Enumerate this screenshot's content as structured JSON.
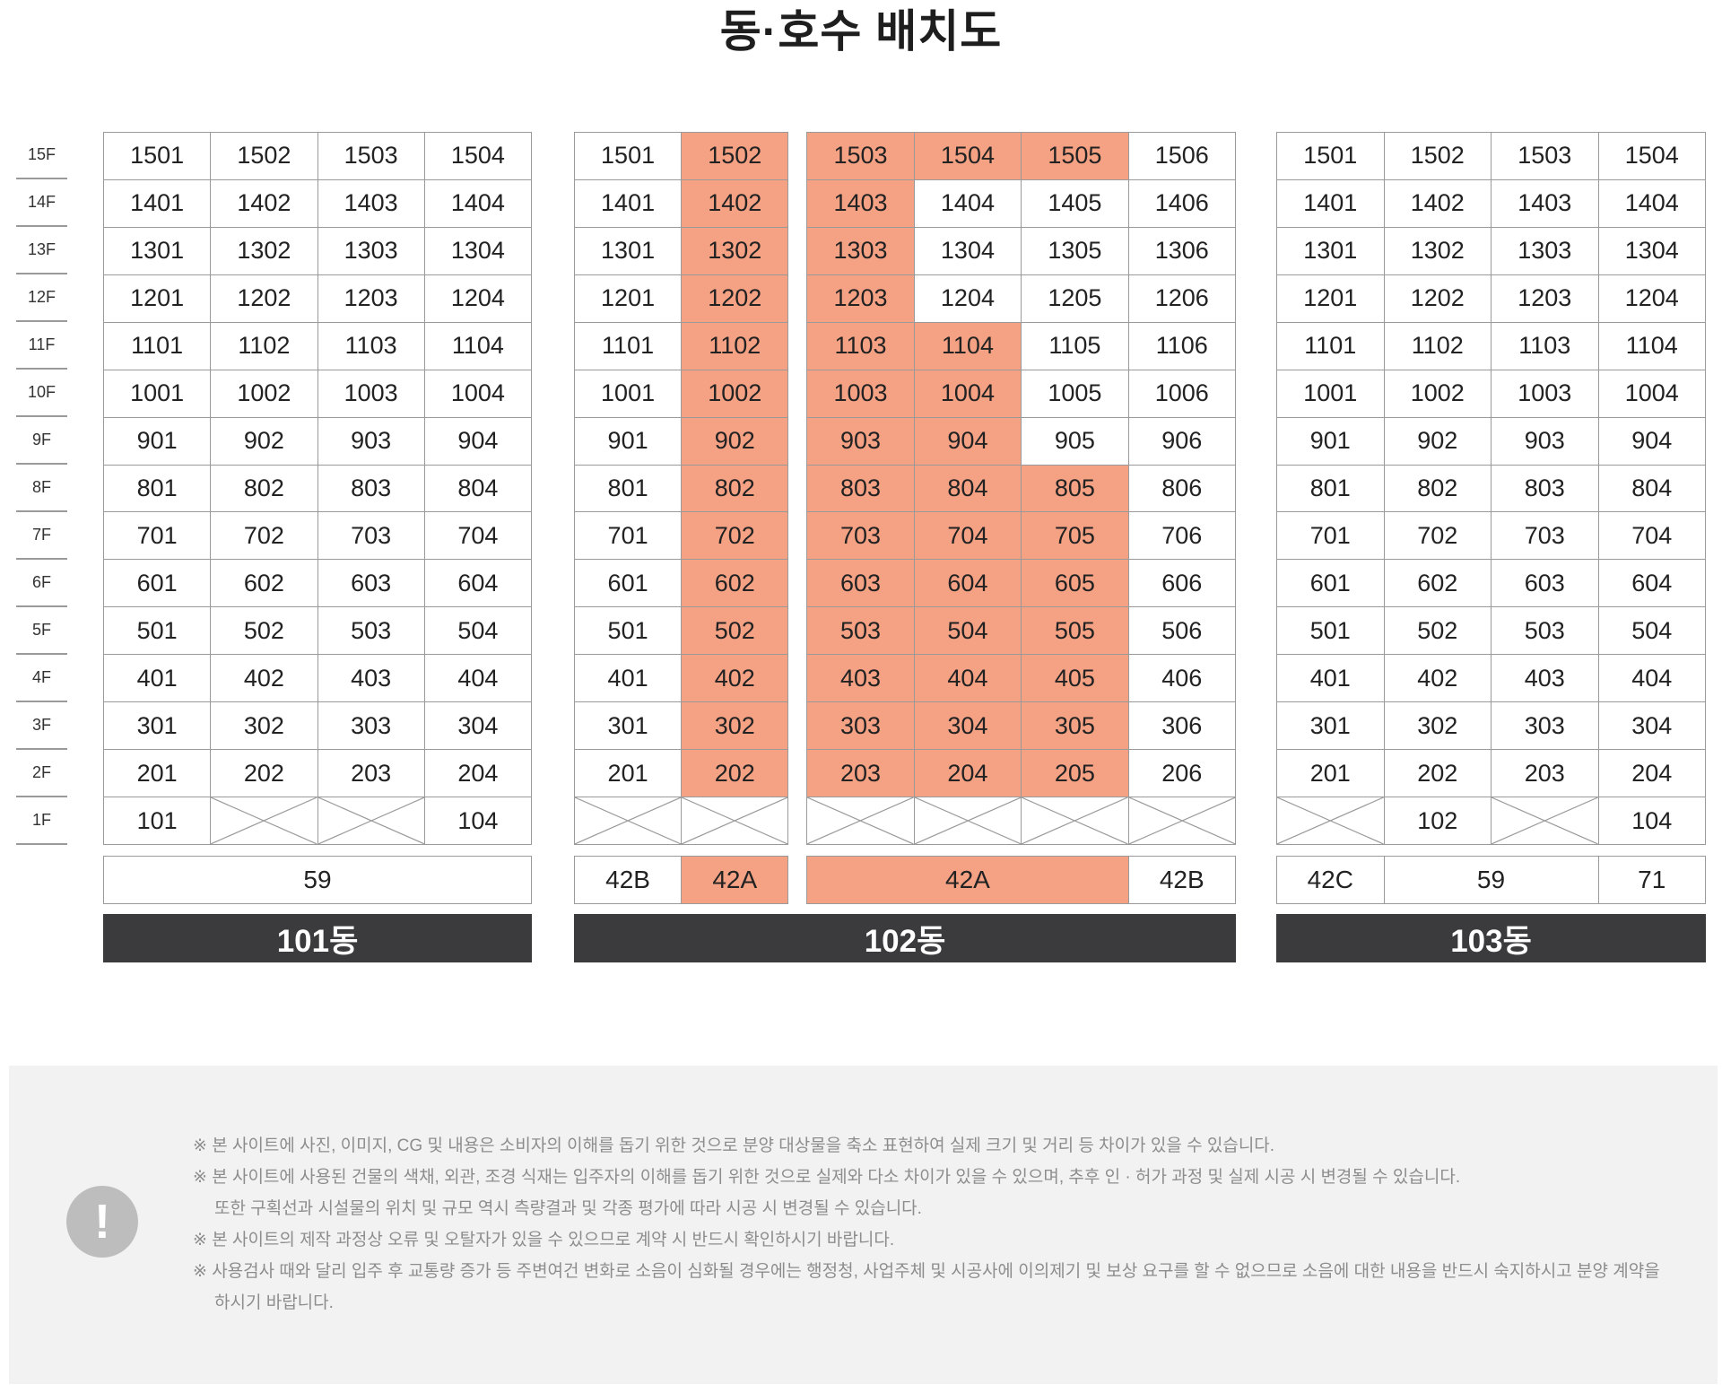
{
  "title": "동·호수 배치도",
  "floors": [
    "15F",
    "14F",
    "13F",
    "12F",
    "11F",
    "10F",
    "9F",
    "8F",
    "7F",
    "6F",
    "5F",
    "4F",
    "3F",
    "2F",
    "1F"
  ],
  "buildings": [
    {
      "name": "101동",
      "types": [
        {
          "label": "59",
          "span": 4,
          "highlight": false
        }
      ],
      "rows": [
        [
          "1501",
          "1502",
          "1503",
          "1504"
        ],
        [
          "1401",
          "1402",
          "1403",
          "1404"
        ],
        [
          "1301",
          "1302",
          "1303",
          "1304"
        ],
        [
          "1201",
          "1202",
          "1203",
          "1204"
        ],
        [
          "1101",
          "1102",
          "1103",
          "1104"
        ],
        [
          "1001",
          "1002",
          "1003",
          "1004"
        ],
        [
          "901",
          "902",
          "903",
          "904"
        ],
        [
          "801",
          "802",
          "803",
          "804"
        ],
        [
          "701",
          "702",
          "703",
          "704"
        ],
        [
          "601",
          "602",
          "603",
          "604"
        ],
        [
          "501",
          "502",
          "503",
          "504"
        ],
        [
          "401",
          "402",
          "403",
          "404"
        ],
        [
          "301",
          "302",
          "303",
          "304"
        ],
        [
          "201",
          "202",
          "203",
          "204"
        ],
        [
          "101",
          "X",
          "X",
          "104"
        ]
      ],
      "highlighted": []
    },
    {
      "name": "102동",
      "types": [
        {
          "label": "42B",
          "span": 1,
          "highlight": false
        },
        {
          "label": "42A",
          "span": 1,
          "highlight": true
        },
        {
          "label": "42A",
          "span": 3,
          "highlight": true
        },
        {
          "label": "42B",
          "span": 1,
          "highlight": false
        }
      ],
      "rows": [
        [
          "1501",
          "1502",
          "1503",
          "1504",
          "1505",
          "1506"
        ],
        [
          "1401",
          "1402",
          "1403",
          "1404",
          "1405",
          "1406"
        ],
        [
          "1301",
          "1302",
          "1303",
          "1304",
          "1305",
          "1306"
        ],
        [
          "1201",
          "1202",
          "1203",
          "1204",
          "1205",
          "1206"
        ],
        [
          "1101",
          "1102",
          "1103",
          "1104",
          "1105",
          "1106"
        ],
        [
          "1001",
          "1002",
          "1003",
          "1004",
          "1005",
          "1006"
        ],
        [
          "901",
          "902",
          "903",
          "904",
          "905",
          "906"
        ],
        [
          "801",
          "802",
          "803",
          "804",
          "805",
          "806"
        ],
        [
          "701",
          "702",
          "703",
          "704",
          "705",
          "706"
        ],
        [
          "601",
          "602",
          "603",
          "604",
          "605",
          "606"
        ],
        [
          "501",
          "502",
          "503",
          "504",
          "505",
          "506"
        ],
        [
          "401",
          "402",
          "403",
          "404",
          "405",
          "406"
        ],
        [
          "301",
          "302",
          "303",
          "304",
          "305",
          "306"
        ],
        [
          "201",
          "202",
          "203",
          "204",
          "205",
          "206"
        ],
        [
          "X",
          "X",
          "X",
          "X",
          "X",
          "X"
        ]
      ],
      "highlighted": [
        "1502",
        "1503",
        "1504",
        "1505",
        "1402",
        "1403",
        "1302",
        "1303",
        "1202",
        "1203",
        "1102",
        "1103",
        "1104",
        "1002",
        "1003",
        "1004",
        "902",
        "903",
        "904",
        "802",
        "803",
        "804",
        "805",
        "702",
        "703",
        "704",
        "705",
        "602",
        "603",
        "604",
        "605",
        "502",
        "503",
        "504",
        "505",
        "402",
        "403",
        "404",
        "405",
        "302",
        "303",
        "304",
        "305",
        "202",
        "203",
        "204",
        "205"
      ]
    },
    {
      "name": "103동",
      "types": [
        {
          "label": "42C",
          "span": 1,
          "highlight": false
        },
        {
          "label": "59",
          "span": 2,
          "highlight": false
        },
        {
          "label": "71",
          "span": 1,
          "highlight": false
        }
      ],
      "rows": [
        [
          "1501",
          "1502",
          "1503",
          "1504"
        ],
        [
          "1401",
          "1402",
          "1403",
          "1404"
        ],
        [
          "1301",
          "1302",
          "1303",
          "1304"
        ],
        [
          "1201",
          "1202",
          "1203",
          "1204"
        ],
        [
          "1101",
          "1102",
          "1103",
          "1104"
        ],
        [
          "1001",
          "1002",
          "1003",
          "1004"
        ],
        [
          "901",
          "902",
          "903",
          "904"
        ],
        [
          "801",
          "802",
          "803",
          "804"
        ],
        [
          "701",
          "702",
          "703",
          "704"
        ],
        [
          "601",
          "602",
          "603",
          "604"
        ],
        [
          "501",
          "502",
          "503",
          "504"
        ],
        [
          "401",
          "402",
          "403",
          "404"
        ],
        [
          "301",
          "302",
          "303",
          "304"
        ],
        [
          "201",
          "202",
          "203",
          "204"
        ],
        [
          "X",
          "102",
          "X",
          "104"
        ]
      ],
      "highlighted": []
    }
  ],
  "notice": {
    "icon": "exclamation-icon",
    "lines": [
      "※ 본 사이트에 사진, 이미지, CG 및 내용은 소비자의 이해를 돕기 위한 것으로 분양 대상물을 축소 표현하여 실제 크기 및 거리 등 차이가 있을 수 있습니다.",
      "※ 본 사이트에 사용된 건물의 색채, 외관, 조경 식재는 입주자의 이해를 돕기 위한 것으로 실제와 다소 차이가 있을 수 있으며, 추후 인 · 허가 과정 및 실제 시공 시 변경될 수 있습니다.",
      "또한 구획선과 시설물의 위치 및 규모 역시 측량결과 및 각종 평가에 따라 시공 시 변경될 수 있습니다.",
      "※ 본 사이트의 제작 과정상 오류 및 오탈자가 있을 수 있으므로 계약 시 반드시 확인하시기 바랍니다.",
      "※ 사용검사 때와 달리 입주 후 교통량 증가 등 주변여건 변화로 소음이 심화될 경우에는 행정청, 사업주체 및 시공사에 이의제기 및 보상 요구를 할 수 없으므로 소음에 대한 내용을 반드시 숙지하시고 분양 계약을",
      "하시기 바랍니다."
    ]
  },
  "colors": {
    "highlight": "#f4a184",
    "bar": "#3b3b3d",
    "notice_bg": "#f2f2f2",
    "grid_line": "#9a9a9a"
  }
}
